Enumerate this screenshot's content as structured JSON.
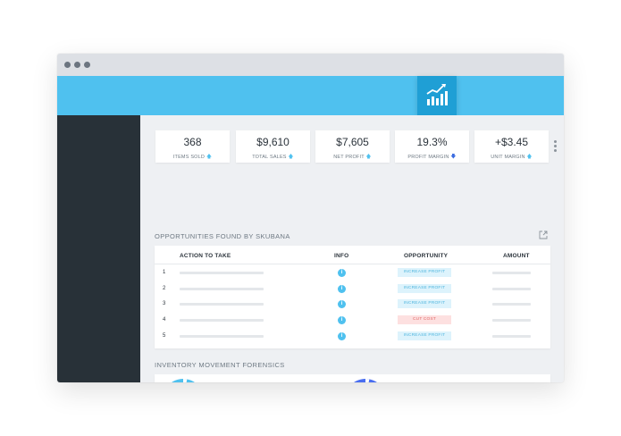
{
  "window": {
    "controls": [
      "close",
      "minimize",
      "maximize"
    ]
  },
  "header": {
    "logo_icon": "bar-chart-trend-icon"
  },
  "kpis": [
    {
      "value": "368",
      "label": "ITEMS SOLD",
      "trend": "up",
      "arrow": "🡅"
    },
    {
      "value": "$9,610",
      "label": "TOTAL SALES",
      "trend": "up",
      "arrow": "🡅"
    },
    {
      "value": "$7,605",
      "label": "NET PROFIT",
      "trend": "up",
      "arrow": "🡅"
    },
    {
      "value": "19.3%",
      "label": "PROFIT MARGIN",
      "trend": "down",
      "arrow": "🡇"
    },
    {
      "value": "+$3.45",
      "label": "UNIT MARGIN",
      "trend": "up",
      "arrow": "🡅"
    }
  ],
  "opportunities": {
    "title": "OPPORTUNITIES FOUND BY SKUBANA",
    "columns": [
      "ACTION TO TAKE",
      "INFO",
      "OPPORTUNITY",
      "AMOUNT"
    ],
    "rows": [
      {
        "num": "1",
        "opportunity": "INCREASE PROFIT",
        "type": "increase"
      },
      {
        "num": "2",
        "opportunity": "INCREASE PROFIT",
        "type": "increase"
      },
      {
        "num": "3",
        "opportunity": "INCREASE PROFIT",
        "type": "increase"
      },
      {
        "num": "4",
        "opportunity": "CUT COST",
        "type": "cut"
      },
      {
        "num": "5",
        "opportunity": "INCREASE PROFIT",
        "type": "increase"
      }
    ]
  },
  "inventory": {
    "title": "INVENTORY MOVEMENT FORENSICS",
    "pies": [
      {
        "color": "#4fc1ef",
        "slice_fraction": 0.03,
        "legend_colors": [
          "#c9eefb",
          "#8fd8f5",
          "#4fc1ef"
        ]
      },
      {
        "color": "#4a6ef0",
        "slice_fraction": 0.03,
        "legend_colors": [
          "#c7d2fa",
          "#8ea4f4",
          "#4a6ef0"
        ]
      }
    ]
  },
  "colors": {
    "accent": "#4fc1ef",
    "accent_dark": "#1f9fd5",
    "sidebar": "#283138",
    "down": "#3b6ce0"
  }
}
